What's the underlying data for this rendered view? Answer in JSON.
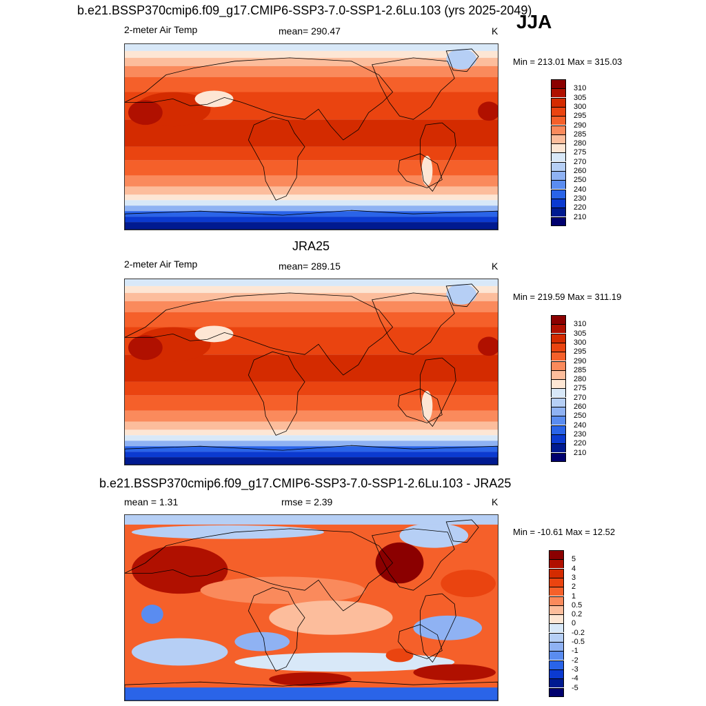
{
  "season": "JJA",
  "panels": [
    {
      "id": "model",
      "title": "b.e21.BSSP370cmip6.f09_g17.CMIP6-SSP3-7.0-SSP1-2.6Lu.103 (yrs 2025-2049)",
      "left_label": "2-meter Air Temp",
      "center_label": "mean= 290.47",
      "units": "K",
      "minmax": "Min = 213.01 Max = 315.03"
    },
    {
      "id": "obs",
      "title": "JRA25",
      "left_label": "2-meter Air Temp",
      "center_label": "mean= 289.15",
      "units": "K",
      "minmax": "Min = 219.59 Max = 311.19"
    },
    {
      "id": "diff",
      "title": "b.e21.BSSP370cmip6.f09_g17.CMIP6-SSP3-7.0-SSP1-2.6Lu.103 - JRA25",
      "left_label": "mean =   1.31",
      "center_label": "rmse =   2.39",
      "units": "K",
      "minmax": "Min = -10.61 Max =  12.52"
    }
  ],
  "chart_data": [
    {
      "type": "heatmap",
      "title": "b.e21.BSSP370cmip6.f09_g17.CMIP6-SSP3-7.0-SSP1-2.6Lu.103 (yrs 2025-2049)",
      "variable": "2-meter Air Temp",
      "units": "K",
      "mean": 290.47,
      "min": 213.01,
      "max": 315.03,
      "colorbar_levels": [
        310,
        305,
        300,
        295,
        290,
        285,
        280,
        275,
        270,
        260,
        250,
        240,
        230,
        220,
        210
      ],
      "colorbar_colors": [
        "#8b0000",
        "#b01000",
        "#d42b00",
        "#ea4410",
        "#f5602a",
        "#fa8a5c",
        "#fcbd9c",
        "#fde6d4",
        "#d8e8f8",
        "#b6cff5",
        "#8fb2f3",
        "#5a8cf0",
        "#2a64e8",
        "#0b3ad0",
        "#001a90",
        "#00006e"
      ],
      "land_regions": [
        "Africa",
        "Eurasia",
        "Australia",
        "North America",
        "South America",
        "Greenland",
        "Antarctica"
      ]
    },
    {
      "type": "heatmap",
      "title": "JRA25",
      "variable": "2-meter Air Temp",
      "units": "K",
      "mean": 289.15,
      "min": 219.59,
      "max": 311.19,
      "colorbar_levels": [
        310,
        305,
        300,
        295,
        290,
        285,
        280,
        275,
        270,
        260,
        250,
        240,
        230,
        220,
        210
      ],
      "colorbar_colors": [
        "#8b0000",
        "#b01000",
        "#d42b00",
        "#ea4410",
        "#f5602a",
        "#fa8a5c",
        "#fcbd9c",
        "#fde6d4",
        "#d8e8f8",
        "#b6cff5",
        "#8fb2f3",
        "#5a8cf0",
        "#2a64e8",
        "#0b3ad0",
        "#001a90",
        "#00006e"
      ]
    },
    {
      "type": "heatmap",
      "title": "b.e21.BSSP370cmip6.f09_g17.CMIP6-SSP3-7.0-SSP1-2.6Lu.103 - JRA25",
      "units": "K",
      "mean": 1.31,
      "rmse": 2.39,
      "min": -10.61,
      "max": 12.52,
      "colorbar_levels": [
        "5",
        "4",
        "3",
        "2",
        "1",
        "0.5",
        "0.2",
        "0",
        "-0.2",
        "-0.5",
        "-1",
        "-2",
        "-3",
        "-4",
        "-5"
      ],
      "colorbar_colors": [
        "#8b0000",
        "#b01000",
        "#d42b00",
        "#ea4410",
        "#f5602a",
        "#fa8a5c",
        "#fcbd9c",
        "#fde6d4",
        "#d8e8f8",
        "#b6cff5",
        "#8fb2f3",
        "#5a8cf0",
        "#2a64e8",
        "#0b3ad0",
        "#001a90",
        "#00006e"
      ]
    }
  ]
}
